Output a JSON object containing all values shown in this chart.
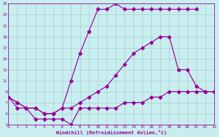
{
  "xlabel": "Windchill (Refroidissement éolien,°C)",
  "bg_color": "#c8eef0",
  "grid_color": "#b0d8dc",
  "line_color": "#990099",
  "xmin": 0,
  "xmax": 23,
  "ymin": 3,
  "ymax": 25,
  "yticks": [
    3,
    5,
    7,
    9,
    11,
    13,
    15,
    17,
    19,
    21,
    23,
    25
  ],
  "xticks": [
    0,
    1,
    2,
    3,
    4,
    5,
    6,
    7,
    8,
    9,
    10,
    11,
    12,
    13,
    14,
    15,
    16,
    17,
    18,
    19,
    20,
    21,
    22,
    23
  ],
  "line1_x": [
    0,
    1,
    2,
    3,
    4,
    5,
    6,
    7,
    8,
    9,
    10,
    11,
    12,
    13,
    14,
    15,
    16,
    17,
    18,
    19,
    20,
    21
  ],
  "line1_y": [
    8,
    7,
    6,
    6,
    5,
    5,
    6,
    11,
    16,
    20,
    24,
    24,
    25,
    24,
    24,
    24,
    24,
    24,
    24,
    24,
    24,
    24
  ],
  "line2_x": [
    0,
    1,
    2,
    3,
    4,
    5,
    6,
    7,
    8,
    9,
    10,
    11,
    12,
    13,
    14,
    15,
    16,
    17,
    18,
    19,
    20,
    21,
    22,
    23
  ],
  "line2_y": [
    8,
    7,
    6,
    6,
    5,
    5,
    6,
    6,
    7,
    8,
    9,
    10,
    12,
    14,
    16,
    17,
    18,
    19,
    19,
    13,
    13,
    10,
    9,
    9
  ],
  "line3_x": [
    0,
    1,
    2,
    3,
    4,
    5,
    6,
    7,
    8,
    9,
    10,
    11,
    12,
    13,
    14,
    15,
    16,
    17,
    18,
    19,
    20,
    21,
    22,
    23
  ],
  "line3_y": [
    8,
    6,
    6,
    4,
    4,
    4,
    4,
    3,
    6,
    6,
    6,
    6,
    6,
    7,
    7,
    7,
    8,
    8,
    9,
    9,
    9,
    9,
    9,
    9
  ],
  "markersize": 2.5,
  "linewidth": 0.9
}
